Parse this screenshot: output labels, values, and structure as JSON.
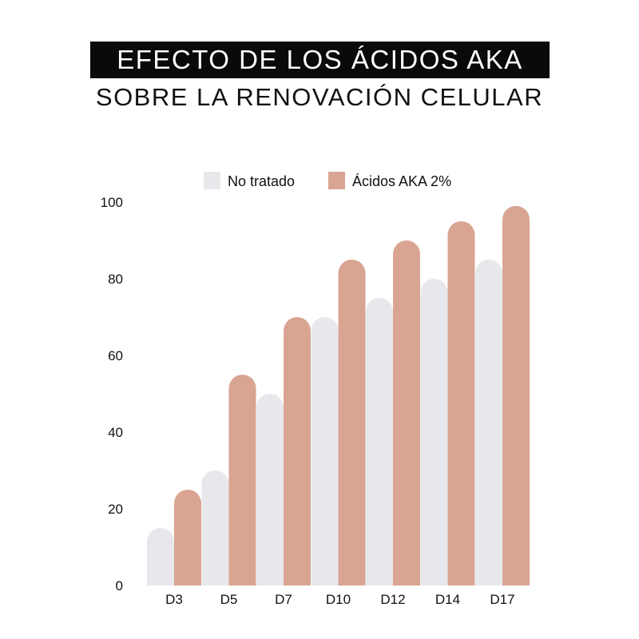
{
  "title_line1": "EFECTO DE LOS ÁCIDOS AKA",
  "title_line2": "SOBRE LA RENOVACIÓN CELULAR",
  "chart_data": {
    "type": "bar",
    "categories": [
      "D3",
      "D5",
      "D7",
      "D10",
      "D12",
      "D14",
      "D17"
    ],
    "series": [
      {
        "name": "No tratado",
        "color": "#e8e8ec",
        "values": [
          15,
          30,
          50,
          70,
          75,
          80,
          85
        ]
      },
      {
        "name": "Ácidos AKA 2%",
        "color": "#d9a592",
        "values": [
          25,
          55,
          70,
          85,
          90,
          95,
          99
        ]
      }
    ],
    "ylim": [
      0,
      100
    ],
    "yticks": [
      0,
      20,
      40,
      60,
      80,
      100
    ],
    "grid": false,
    "legend": "top"
  }
}
